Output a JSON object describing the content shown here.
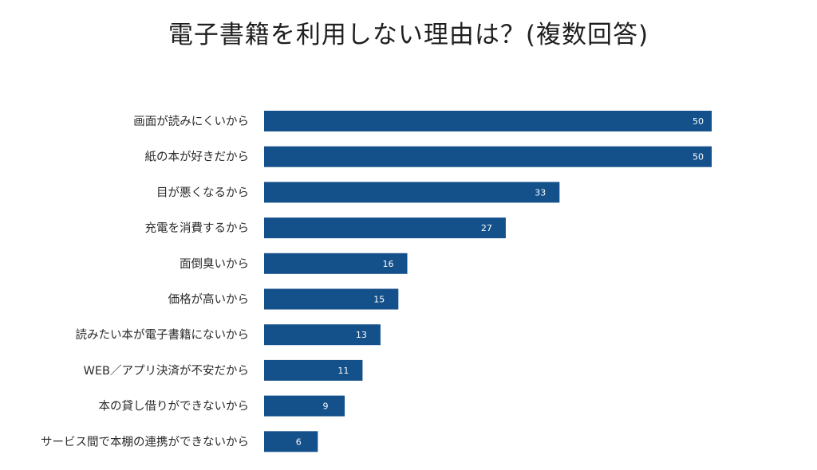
{
  "chart_data": {
    "type": "bar",
    "orientation": "horizontal",
    "title": "電子書籍を利用しない理由は？(複数回答)",
    "categories": [
      "画面が読みにくいから",
      "紙の本が好きだから",
      "目が悪くなるから",
      "充電を消費するから",
      "面倒臭いから",
      "価格が高いから",
      "読みたい本が電子書籍にないから",
      "WEB／アプリ決済が不安だから",
      "本の貸し借りができないから",
      "サービス間で本棚の連携ができないから"
    ],
    "values": [
      50,
      50,
      33,
      27,
      16,
      15,
      13,
      11,
      9,
      6
    ],
    "xlim": [
      0,
      50
    ],
    "grid": false,
    "data_labels": true,
    "bar_color": "#14508a"
  }
}
